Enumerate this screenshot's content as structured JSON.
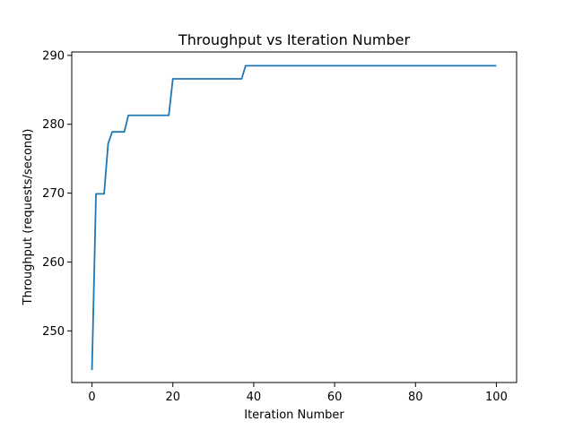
{
  "chart_data": {
    "type": "line",
    "title": "Throughput vs Iteration Number",
    "xlabel": "Iteration Number",
    "ylabel": "Throughput (requests/second)",
    "xlim": [
      -5,
      105
    ],
    "ylim": [
      242.5,
      290.5
    ],
    "x_ticks": [
      0,
      20,
      40,
      60,
      80,
      100
    ],
    "y_ticks": [
      250,
      260,
      270,
      280,
      290
    ],
    "x_tick_labels": [
      "0",
      "20",
      "40",
      "60",
      "80",
      "100"
    ],
    "y_tick_labels": [
      "250",
      "260",
      "270",
      "280",
      "290"
    ],
    "grid": false,
    "line_color": "#1f77b4",
    "series": [
      {
        "x": [
          0,
          1,
          2,
          3,
          4,
          5,
          6,
          7,
          8,
          9,
          10,
          19,
          20,
          25,
          37,
          38,
          50,
          100
        ],
        "y": [
          244.3,
          269.9,
          269.9,
          269.9,
          277.2,
          278.9,
          278.9,
          278.9,
          278.9,
          281.3,
          281.3,
          281.3,
          286.6,
          286.6,
          286.6,
          288.5,
          288.5,
          288.5
        ]
      }
    ]
  }
}
